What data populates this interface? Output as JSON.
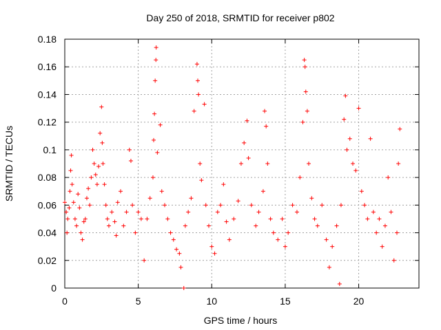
{
  "chart_data": {
    "type": "scatter",
    "title": "Day 250 of 2018, SRMTID for receiver p802",
    "xlabel": "GPS time / hours",
    "ylabel": "SRMTID / TECUs",
    "xlim": [
      0,
      24.1
    ],
    "ylim": [
      0,
      0.18
    ],
    "x_ticks": [
      0,
      5,
      10,
      15,
      20
    ],
    "x_tick_labels": [
      "0",
      "5",
      "10",
      "15",
      "20"
    ],
    "y_ticks": [
      0,
      0.02,
      0.04,
      0.06,
      0.08,
      0.1,
      0.12,
      0.14,
      0.16,
      0.18
    ],
    "y_tick_labels": [
      "0",
      "0.02",
      "0.04",
      "0.06",
      "0.08",
      "0.1",
      "0.12",
      "0.14",
      "0.16",
      "0.18"
    ],
    "grid": true,
    "marker": "+",
    "color": "#ff0000",
    "series": [
      {
        "name": "SRMTID",
        "points": [
          [
            0.0,
            0.062
          ],
          [
            0.1,
            0.055
          ],
          [
            0.15,
            0.04
          ],
          [
            0.2,
            0.05
          ],
          [
            0.3,
            0.058
          ],
          [
            0.35,
            0.07
          ],
          [
            0.4,
            0.085
          ],
          [
            0.45,
            0.096
          ],
          [
            0.5,
            0.075
          ],
          [
            0.6,
            0.062
          ],
          [
            0.7,
            0.05
          ],
          [
            0.8,
            0.045
          ],
          [
            0.9,
            0.068
          ],
          [
            1.0,
            0.058
          ],
          [
            1.1,
            0.04
          ],
          [
            1.2,
            0.035
          ],
          [
            1.3,
            0.048
          ],
          [
            1.4,
            0.05
          ],
          [
            1.5,
            0.065
          ],
          [
            1.6,
            0.072
          ],
          [
            1.7,
            0.06
          ],
          [
            1.8,
            0.08
          ],
          [
            1.9,
            0.1
          ],
          [
            2.0,
            0.09
          ],
          [
            2.1,
            0.082
          ],
          [
            2.2,
            0.075
          ],
          [
            2.3,
            0.088
          ],
          [
            2.4,
            0.112
          ],
          [
            2.5,
            0.131
          ],
          [
            2.55,
            0.105
          ],
          [
            2.6,
            0.09
          ],
          [
            2.7,
            0.075
          ],
          [
            2.8,
            0.06
          ],
          [
            2.9,
            0.05
          ],
          [
            3.0,
            0.045
          ],
          [
            3.2,
            0.055
          ],
          [
            3.4,
            0.048
          ],
          [
            3.5,
            0.038
          ],
          [
            3.6,
            0.062
          ],
          [
            3.8,
            0.07
          ],
          [
            4.0,
            0.045
          ],
          [
            4.2,
            0.055
          ],
          [
            4.4,
            0.1
          ],
          [
            4.5,
            0.092
          ],
          [
            4.6,
            0.06
          ],
          [
            4.8,
            0.04
          ],
          [
            5.0,
            0.055
          ],
          [
            5.2,
            0.05
          ],
          [
            5.4,
            0.02
          ],
          [
            5.6,
            0.05
          ],
          [
            5.8,
            0.065
          ],
          [
            6.0,
            0.08
          ],
          [
            6.05,
            0.107
          ],
          [
            6.1,
            0.126
          ],
          [
            6.15,
            0.15
          ],
          [
            6.2,
            0.165
          ],
          [
            6.22,
            0.174
          ],
          [
            6.3,
            0.098
          ],
          [
            6.5,
            0.118
          ],
          [
            6.6,
            0.07
          ],
          [
            6.8,
            0.06
          ],
          [
            7.0,
            0.05
          ],
          [
            7.2,
            0.04
          ],
          [
            7.4,
            0.035
          ],
          [
            7.6,
            0.028
          ],
          [
            7.8,
            0.025
          ],
          [
            7.9,
            0.015
          ],
          [
            8.1,
            0.0
          ],
          [
            8.2,
            0.045
          ],
          [
            8.4,
            0.055
          ],
          [
            8.6,
            0.065
          ],
          [
            8.8,
            0.128
          ],
          [
            9.0,
            0.162
          ],
          [
            9.05,
            0.15
          ],
          [
            9.1,
            0.14
          ],
          [
            9.2,
            0.09
          ],
          [
            9.3,
            0.078
          ],
          [
            9.5,
            0.133
          ],
          [
            9.6,
            0.06
          ],
          [
            9.8,
            0.045
          ],
          [
            10.0,
            0.03
          ],
          [
            10.2,
            0.025
          ],
          [
            10.4,
            0.055
          ],
          [
            10.6,
            0.06
          ],
          [
            10.8,
            0.075
          ],
          [
            11.0,
            0.048
          ],
          [
            11.2,
            0.035
          ],
          [
            11.5,
            0.05
          ],
          [
            11.8,
            0.063
          ],
          [
            12.0,
            0.09
          ],
          [
            12.2,
            0.105
          ],
          [
            12.4,
            0.121
          ],
          [
            12.5,
            0.094
          ],
          [
            12.7,
            0.06
          ],
          [
            13.0,
            0.045
          ],
          [
            13.2,
            0.055
          ],
          [
            13.5,
            0.07
          ],
          [
            13.6,
            0.128
          ],
          [
            13.7,
            0.117
          ],
          [
            13.8,
            0.09
          ],
          [
            14.0,
            0.05
          ],
          [
            14.2,
            0.04
          ],
          [
            14.5,
            0.035
          ],
          [
            14.8,
            0.05
          ],
          [
            15.0,
            0.03
          ],
          [
            15.2,
            0.04
          ],
          [
            15.5,
            0.06
          ],
          [
            15.8,
            0.055
          ],
          [
            16.0,
            0.08
          ],
          [
            16.2,
            0.12
          ],
          [
            16.3,
            0.165
          ],
          [
            16.35,
            0.16
          ],
          [
            16.4,
            0.142
          ],
          [
            16.5,
            0.128
          ],
          [
            16.6,
            0.09
          ],
          [
            16.8,
            0.065
          ],
          [
            17.0,
            0.05
          ],
          [
            17.2,
            0.045
          ],
          [
            17.5,
            0.06
          ],
          [
            17.8,
            0.035
          ],
          [
            18.0,
            0.015
          ],
          [
            18.2,
            0.03
          ],
          [
            18.5,
            0.045
          ],
          [
            18.7,
            0.003
          ],
          [
            18.8,
            0.06
          ],
          [
            19.0,
            0.122
          ],
          [
            19.1,
            0.139
          ],
          [
            19.2,
            0.1
          ],
          [
            19.4,
            0.108
          ],
          [
            19.6,
            0.09
          ],
          [
            19.8,
            0.085
          ],
          [
            20.0,
            0.13
          ],
          [
            20.2,
            0.07
          ],
          [
            20.4,
            0.06
          ],
          [
            20.6,
            0.05
          ],
          [
            20.8,
            0.108
          ],
          [
            21.0,
            0.055
          ],
          [
            21.2,
            0.04
          ],
          [
            21.4,
            0.05
          ],
          [
            21.6,
            0.03
          ],
          [
            21.8,
            0.045
          ],
          [
            22.0,
            0.08
          ],
          [
            22.2,
            0.055
          ],
          [
            22.4,
            0.02
          ],
          [
            22.6,
            0.04
          ],
          [
            22.7,
            0.09
          ],
          [
            22.8,
            0.115
          ]
        ]
      }
    ]
  }
}
